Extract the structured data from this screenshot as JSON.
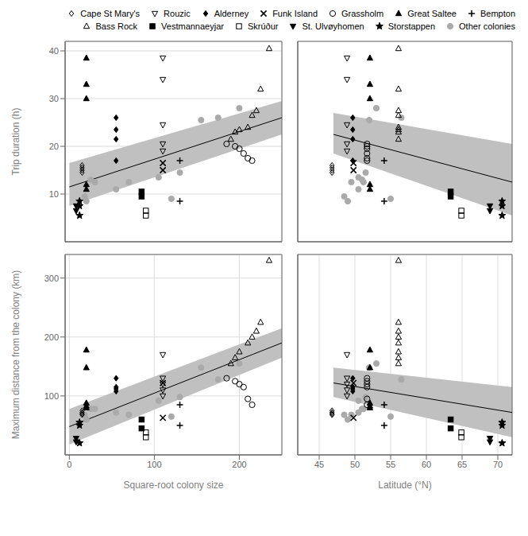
{
  "chart_data": [
    {
      "type": "scatter",
      "ylabel": "Trip duration (h)",
      "xlim": [
        -5,
        250
      ],
      "ylim": [
        0,
        42
      ],
      "xticks": [
        0,
        100,
        200
      ],
      "yticks": [
        10,
        20,
        30,
        40
      ],
      "grid": true,
      "tick_labels": "y",
      "fit": {
        "x": [
          0,
          250
        ],
        "values": [
          11.5,
          26.0
        ],
        "ci_upper": [
          16.5,
          29.5
        ],
        "ci_lower": [
          7.5,
          22.5
        ],
        "color": "black",
        "ci_color": "#c0c0c0"
      },
      "series": [
        {
          "name": "Cape St Mary's",
          "marker": "diamond_open",
          "color": "black",
          "x": [
            15,
            15,
            15,
            15
          ],
          "values": [
            14.5,
            15.5,
            16.0,
            15.0
          ]
        },
        {
          "name": "Rouzic",
          "marker": "triangle_down_open",
          "color": "black",
          "x": [
            110,
            110,
            110,
            110,
            110
          ],
          "values": [
            38.5,
            34.0,
            24.5,
            20.5,
            19.0
          ]
        },
        {
          "name": "Alderney",
          "marker": "diamond",
          "color": "black",
          "x": [
            55,
            55,
            55,
            55
          ],
          "values": [
            26.0,
            23.5,
            21.5,
            17.0
          ]
        },
        {
          "name": "Funk Island",
          "marker": "x",
          "color": "black",
          "x": [
            110,
            110
          ],
          "values": [
            16.5,
            15.0
          ]
        },
        {
          "name": "Grassholm",
          "marker": "circle_open",
          "color": "black",
          "x": [
            185,
            195,
            200,
            205,
            210,
            215
          ],
          "values": [
            20.5,
            20.0,
            19.5,
            18.5,
            17.5,
            17.0
          ]
        },
        {
          "name": "Great Saltee",
          "marker": "triangle_up",
          "color": "black",
          "x": [
            20,
            20,
            20,
            20,
            20
          ],
          "values": [
            38.5,
            33.0,
            30.0,
            12.0,
            11.0
          ]
        },
        {
          "name": "Bempton",
          "marker": "plus",
          "color": "black",
          "x": [
            130,
            130
          ],
          "values": [
            17.0,
            8.5
          ]
        },
        {
          "name": "Bass Rock",
          "marker": "triangle_up_open",
          "color": "black",
          "x": [
            235,
            225,
            220,
            215,
            210,
            200,
            195,
            190
          ],
          "values": [
            40.5,
            32.0,
            27.5,
            26.5,
            24.0,
            23.5,
            23.0,
            21.5
          ]
        },
        {
          "name": "Vestmannaeyjar",
          "marker": "square",
          "color": "black",
          "x": [
            85,
            85
          ],
          "values": [
            10.5,
            9.5
          ]
        },
        {
          "name": "Skrúður",
          "marker": "square_open",
          "color": "black",
          "x": [
            90,
            90
          ],
          "values": [
            6.5,
            5.5
          ]
        },
        {
          "name": "St. Ulvøyhomen",
          "marker": "triangle_down",
          "color": "black",
          "x": [
            8,
            8
          ],
          "values": [
            7.5,
            6.5
          ]
        },
        {
          "name": "Storstappen",
          "marker": "star",
          "color": "black",
          "x": [
            12,
            12,
            12
          ],
          "values": [
            8.5,
            7.5,
            5.5
          ]
        },
        {
          "name": "Other colonies",
          "marker": "circle",
          "color": "#aaaaaa",
          "x": [
            18,
            25,
            70,
            105,
            130,
            155,
            200,
            120,
            175,
            20,
            55,
            30
          ],
          "values": [
            9.5,
            13.0,
            12.5,
            13.5,
            14.5,
            25.5,
            28.0,
            9.0,
            26.0,
            8.5,
            11.0,
            12.5
          ]
        }
      ]
    },
    {
      "type": "scatter",
      "xlim": [
        42,
        72
      ],
      "ylim": [
        0,
        42
      ],
      "xticks": [
        45,
        50,
        55,
        60,
        65,
        70
      ],
      "yticks": [
        10,
        20,
        30,
        40
      ],
      "grid": true,
      "tick_labels": false,
      "legend": "upper right",
      "fit": {
        "x": [
          47,
          72
        ],
        "values": [
          22.5,
          12.5
        ],
        "ci_upper": [
          27.0,
          20.5
        ],
        "ci_lower": [
          18.5,
          5.5
        ],
        "color": "black",
        "ci_color": "#c0c0c0"
      },
      "series": [
        {
          "name": "Cape St Mary's",
          "marker": "diamond_open",
          "color": "black",
          "x": [
            46.8,
            46.8,
            46.8,
            46.8
          ],
          "values": [
            14.5,
            15.5,
            16.0,
            15.0
          ]
        },
        {
          "name": "Rouzic",
          "marker": "triangle_down_open",
          "color": "black",
          "x": [
            48.9,
            48.9,
            48.9,
            48.9,
            48.9
          ],
          "values": [
            38.5,
            34.0,
            24.5,
            20.5,
            19.0
          ]
        },
        {
          "name": "Alderney",
          "marker": "diamond",
          "color": "black",
          "x": [
            49.7,
            49.7,
            49.7,
            49.7
          ],
          "values": [
            26.0,
            23.5,
            21.5,
            17.0
          ]
        },
        {
          "name": "Funk Island",
          "marker": "x",
          "color": "black",
          "x": [
            49.8,
            49.8
          ],
          "values": [
            16.5,
            15.0
          ]
        },
        {
          "name": "Grassholm",
          "marker": "circle_open",
          "color": "black",
          "x": [
            51.7,
            51.7,
            51.7,
            51.7,
            51.7,
            51.7
          ],
          "values": [
            20.5,
            20.0,
            19.5,
            18.5,
            17.5,
            17.0
          ]
        },
        {
          "name": "Great Saltee",
          "marker": "triangle_up",
          "color": "black",
          "x": [
            52.1,
            52.1,
            52.1,
            52.1,
            52.1
          ],
          "values": [
            38.5,
            33.0,
            30.0,
            12.0,
            11.0
          ]
        },
        {
          "name": "Bempton",
          "marker": "plus",
          "color": "black",
          "x": [
            54.1,
            54.1
          ],
          "values": [
            17.0,
            8.5
          ]
        },
        {
          "name": "Bass Rock",
          "marker": "triangle_up_open",
          "color": "black",
          "x": [
            56.1,
            56.1,
            56.1,
            56.1,
            56.1,
            56.1,
            56.1,
            56.1
          ],
          "values": [
            40.5,
            32.0,
            27.5,
            26.5,
            24.0,
            23.5,
            23.0,
            21.5
          ]
        },
        {
          "name": "Vestmannaeyjar",
          "marker": "square",
          "color": "black",
          "x": [
            63.4,
            63.4
          ],
          "values": [
            10.5,
            9.5
          ]
        },
        {
          "name": "Skrúður",
          "marker": "square_open",
          "color": "black",
          "x": [
            64.9,
            64.9
          ],
          "values": [
            6.5,
            5.5
          ]
        },
        {
          "name": "St. Ulvøyhomen",
          "marker": "triangle_down",
          "color": "black",
          "x": [
            68.9,
            68.9
          ],
          "values": [
            7.5,
            6.5
          ]
        },
        {
          "name": "Storstappen",
          "marker": "star",
          "color": "black",
          "x": [
            70.6,
            70.6,
            70.6
          ],
          "values": [
            8.5,
            7.5,
            5.5
          ]
        },
        {
          "name": "Other colonies",
          "marker": "circle",
          "color": "#aaaaaa",
          "x": [
            48.5,
            51.0,
            49.5,
            50.5,
            51.5,
            52.0,
            53.0,
            55.0,
            56.5,
            49.0,
            50.5,
            51.2
          ],
          "values": [
            9.5,
            13.0,
            12.5,
            13.5,
            14.5,
            25.5,
            28.0,
            9.0,
            26.0,
            8.5,
            11.0,
            12.5
          ]
        }
      ]
    },
    {
      "type": "scatter",
      "xlabel": "Square-root colony size",
      "ylabel": "Maximum distance from the colony (km)",
      "xlim": [
        -5,
        250
      ],
      "ylim": [
        0,
        340
      ],
      "xticks": [
        0,
        100,
        200
      ],
      "yticks": [
        100,
        200,
        300
      ],
      "grid": true,
      "tick_labels": true,
      "fit": {
        "x": [
          0,
          250
        ],
        "values": [
          48,
          190
        ],
        "ci_upper": [
          78,
          215
        ],
        "ci_lower": [
          18,
          165
        ],
        "color": "black",
        "ci_color": "#c0c0c0"
      },
      "series": [
        {
          "name": "Cape St Mary's",
          "marker": "diamond_open",
          "color": "black",
          "x": [
            15,
            15,
            15,
            15
          ],
          "values": [
            72,
            68,
            75,
            70
          ]
        },
        {
          "name": "Rouzic",
          "marker": "triangle_down_open",
          "color": "black",
          "x": [
            110,
            110,
            110,
            110,
            110
          ],
          "values": [
            170,
            130,
            120,
            110,
            100
          ]
        },
        {
          "name": "Alderney",
          "marker": "diamond",
          "color": "black",
          "x": [
            55,
            55,
            55,
            55
          ],
          "values": [
            130,
            115,
            112,
            108
          ]
        },
        {
          "name": "Funk Island",
          "marker": "x",
          "color": "black",
          "x": [
            110,
            110
          ],
          "values": [
            122,
            63
          ]
        },
        {
          "name": "Grassholm",
          "marker": "circle_open",
          "color": "black",
          "x": [
            185,
            195,
            200,
            205,
            210,
            215
          ],
          "values": [
            130,
            125,
            120,
            115,
            95,
            85
          ]
        },
        {
          "name": "Great Saltee",
          "marker": "triangle_up",
          "color": "black",
          "x": [
            20,
            20,
            20,
            20,
            20
          ],
          "values": [
            178,
            148,
            88,
            83,
            80
          ]
        },
        {
          "name": "Bempton",
          "marker": "plus",
          "color": "black",
          "x": [
            130,
            130
          ],
          "values": [
            85,
            50
          ]
        },
        {
          "name": "Bass Rock",
          "marker": "triangle_up_open",
          "color": "black",
          "x": [
            235,
            225,
            220,
            215,
            210,
            200,
            195,
            190
          ],
          "values": [
            330,
            225,
            210,
            200,
            190,
            175,
            165,
            155
          ]
        },
        {
          "name": "Vestmannaeyjar",
          "marker": "square",
          "color": "black",
          "x": [
            85,
            85
          ],
          "values": [
            60,
            45
          ]
        },
        {
          "name": "Skrúður",
          "marker": "square_open",
          "color": "black",
          "x": [
            90,
            90
          ],
          "values": [
            38,
            30
          ]
        },
        {
          "name": "St. Ulvøyhomen",
          "marker": "triangle_down",
          "color": "black",
          "x": [
            8,
            8
          ],
          "values": [
            28,
            22
          ]
        },
        {
          "name": "Storstappen",
          "marker": "star",
          "color": "black",
          "x": [
            12,
            12,
            12
          ],
          "values": [
            55,
            50,
            20
          ]
        },
        {
          "name": "Other colonies",
          "marker": "circle",
          "color": "#aaaaaa",
          "x": [
            18,
            25,
            70,
            105,
            130,
            155,
            200,
            120,
            175,
            20,
            55,
            30
          ],
          "values": [
            68,
            78,
            68,
            92,
            98,
            148,
            155,
            65,
            128,
            60,
            72,
            78
          ]
        }
      ]
    },
    {
      "type": "scatter",
      "xlabel": "Latitude (°N)",
      "xlim": [
        42,
        72
      ],
      "ylim": [
        0,
        340
      ],
      "xticks": [
        45,
        50,
        55,
        60,
        65,
        70
      ],
      "yticks": [
        100,
        200,
        300
      ],
      "grid": true,
      "tick_labels": "x",
      "fit": {
        "x": [
          47,
          72
        ],
        "values": [
          122,
          72
        ],
        "ci_upper": [
          148,
          115
        ],
        "ci_lower": [
          98,
          30
        ],
        "color": "black",
        "ci_color": "#c0c0c0"
      },
      "series": [
        {
          "name": "Cape St Mary's",
          "marker": "diamond_open",
          "color": "black",
          "x": [
            46.8,
            46.8,
            46.8,
            46.8
          ],
          "values": [
            72,
            68,
            75,
            70
          ]
        },
        {
          "name": "Rouzic",
          "marker": "triangle_down_open",
          "color": "black",
          "x": [
            48.9,
            48.9,
            48.9,
            48.9,
            48.9
          ],
          "values": [
            170,
            130,
            120,
            110,
            100
          ]
        },
        {
          "name": "Alderney",
          "marker": "diamond",
          "color": "black",
          "x": [
            49.7,
            49.7,
            49.7,
            49.7
          ],
          "values": [
            130,
            115,
            112,
            108
          ]
        },
        {
          "name": "Funk Island",
          "marker": "x",
          "color": "black",
          "x": [
            49.8,
            49.8
          ],
          "values": [
            122,
            63
          ]
        },
        {
          "name": "Grassholm",
          "marker": "circle_open",
          "color": "black",
          "x": [
            51.7,
            51.7,
            51.7,
            51.7,
            51.7,
            51.7
          ],
          "values": [
            130,
            125,
            120,
            115,
            95,
            85
          ]
        },
        {
          "name": "Great Saltee",
          "marker": "triangle_up",
          "color": "black",
          "x": [
            52.1,
            52.1,
            52.1,
            52.1,
            52.1
          ],
          "values": [
            178,
            148,
            88,
            83,
            80
          ]
        },
        {
          "name": "Bempton",
          "marker": "plus",
          "color": "black",
          "x": [
            54.1,
            54.1
          ],
          "values": [
            85,
            50
          ]
        },
        {
          "name": "Bass Rock",
          "marker": "triangle_up_open",
          "color": "black",
          "x": [
            56.1,
            56.1,
            56.1,
            56.1,
            56.1,
            56.1,
            56.1,
            56.1
          ],
          "values": [
            330,
            225,
            210,
            200,
            190,
            175,
            165,
            155
          ]
        },
        {
          "name": "Vestmannaeyjar",
          "marker": "square",
          "color": "black",
          "x": [
            63.4,
            63.4
          ],
          "values": [
            60,
            45
          ]
        },
        {
          "name": "Skrúður",
          "marker": "square_open",
          "color": "black",
          "x": [
            64.9,
            64.9
          ],
          "values": [
            38,
            30
          ]
        },
        {
          "name": "St. Ulvøyhomen",
          "marker": "triangle_down",
          "color": "black",
          "x": [
            68.9,
            68.9
          ],
          "values": [
            28,
            22
          ]
        },
        {
          "name": "Storstappen",
          "marker": "star",
          "color": "black",
          "x": [
            70.6,
            70.6,
            70.6
          ],
          "values": [
            55,
            50,
            20
          ]
        },
        {
          "name": "Other colonies",
          "marker": "circle",
          "color": "#aaaaaa",
          "x": [
            48.5,
            51.0,
            49.5,
            50.5,
            51.5,
            52.0,
            53.0,
            55.0,
            56.5,
            49.0,
            50.5,
            51.2
          ],
          "values": [
            68,
            78,
            68,
            92,
            98,
            148,
            155,
            65,
            128,
            60,
            72,
            78
          ]
        }
      ]
    }
  ]
}
